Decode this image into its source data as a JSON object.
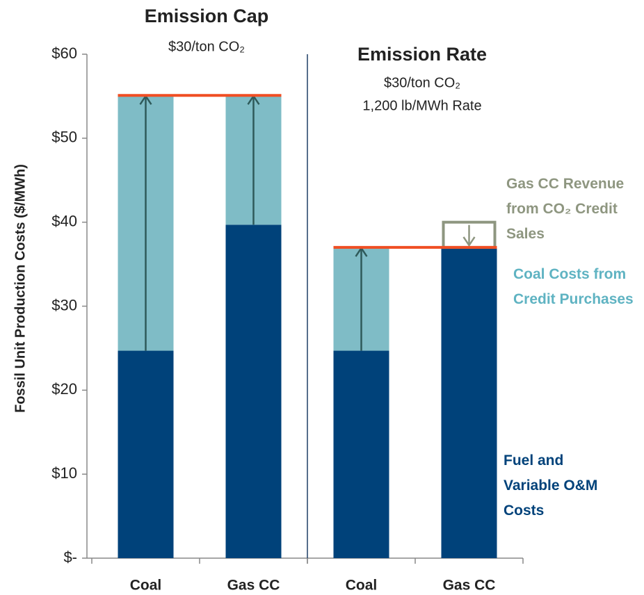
{
  "chart_data": {
    "type": "bar",
    "stacked": true,
    "ylabel": "Fossil Unit Production Costs ($/MWh)",
    "ylim": [
      0,
      60
    ],
    "yticks": [
      {
        "value": 0,
        "label": "$-"
      },
      {
        "value": 10,
        "label": "$10"
      },
      {
        "value": 20,
        "label": "$20"
      },
      {
        "value": 30,
        "label": "$30"
      },
      {
        "value": 40,
        "label": "$40"
      },
      {
        "value": 50,
        "label": "$50"
      },
      {
        "value": 60,
        "label": "$60"
      }
    ],
    "groups": [
      {
        "title": "Emission Cap",
        "subtitle": [
          "$30/ton CO₂"
        ],
        "categories": [
          "Coal",
          "Gas CC"
        ]
      },
      {
        "title": "Emission Rate",
        "subtitle": [
          "$30/ton CO₂",
          "1,200 lb/MWh Rate"
        ],
        "categories": [
          "Coal",
          "Gas CC"
        ]
      }
    ],
    "series": [
      {
        "name": "Fuel and Variable O&M Costs",
        "color": "#00427a",
        "values": [
          24.7,
          39.7,
          24.7,
          37.0
        ]
      },
      {
        "name": "Coal Costs from Credit Purchases",
        "color": "#7fbcc6",
        "values": [
          30.4,
          15.4,
          12.3,
          0
        ]
      },
      {
        "name": "Gas CC Revenue from CO₂ Credit Sales",
        "color": "#8e9680",
        "style": "outline",
        "values": [
          null,
          null,
          null,
          3.0
        ]
      }
    ],
    "price_color": "#f04e23"
  }
}
